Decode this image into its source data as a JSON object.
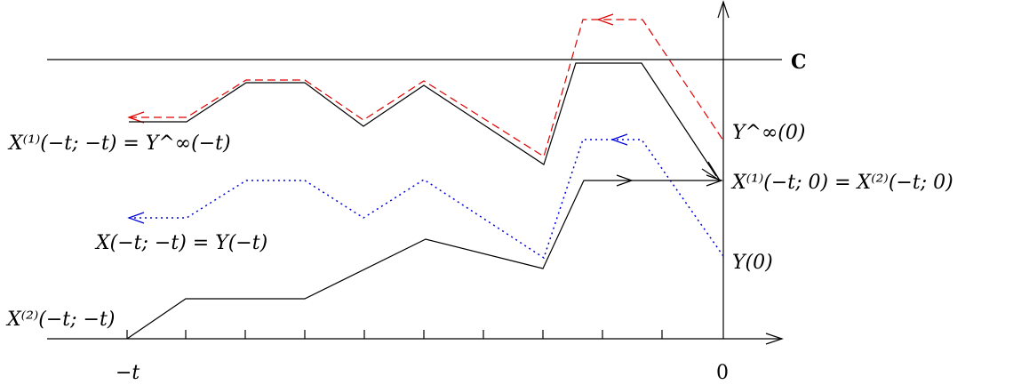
{
  "labels": {
    "c_line": "C",
    "y_inf_left": "X⁽¹⁾(−t; −t) = Y^∞(−t)",
    "x_y_left": "X(−t; −t) = Y(−t)",
    "x2_left": "X⁽²⁾(−t; −t)",
    "y_inf_right": "Y^∞(0)",
    "x_right": "X⁽¹⁾(−t; 0) = X⁽²⁾(−t; 0)",
    "y_right": "Y(0)",
    "minus_t": "−t",
    "zero": "0"
  },
  "colors": {
    "axis": "#000000",
    "path_x1": "#000000",
    "path_x2": "#000000",
    "path_y_inf": "#e00000",
    "path_y": "#0000e0"
  }
}
